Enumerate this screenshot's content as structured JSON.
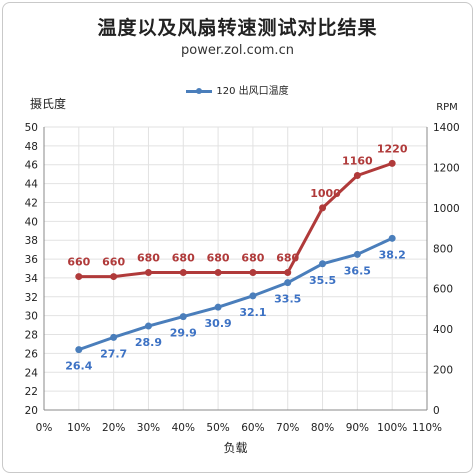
{
  "title": "温度以及风扇转速测试对比结果",
  "subtitle": "power.zol.com.cn",
  "chart_data": {
    "type": "line",
    "x": [
      10,
      20,
      30,
      40,
      50,
      60,
      70,
      80,
      90,
      100
    ],
    "x_tick_labels": [
      "0%",
      "10%",
      "20%",
      "30%",
      "40%",
      "50%",
      "60%",
      "70%",
      "80%",
      "90%",
      "100%",
      "110%"
    ],
    "xlabel": "负载",
    "xlim": [
      0,
      110
    ],
    "y_left": {
      "label": "摄氏度",
      "lim": [
        20,
        50
      ],
      "ticks": [
        20,
        22,
        24,
        26,
        28,
        30,
        32,
        34,
        36,
        38,
        40,
        42,
        44,
        46,
        48,
        50
      ]
    },
    "y_right": {
      "label": "RPM",
      "lim": [
        0,
        1400
      ],
      "ticks": [
        0,
        200,
        400,
        600,
        800,
        1000,
        1200,
        1400
      ]
    },
    "grid": true,
    "legend_position": "top-center",
    "series": [
      {
        "name": "120 出风口温度",
        "axis": "left",
        "color": "#4a7ebb",
        "label_color": "#3d72c4",
        "show_in_legend": true,
        "values": [
          26.4,
          27.7,
          28.9,
          29.9,
          30.9,
          32.1,
          33.5,
          35.5,
          36.5,
          38.2
        ],
        "labels": [
          "26.4",
          "27.7",
          "28.9",
          "29.9",
          "30.9",
          "32.1",
          "33.5",
          "35.5",
          "36.5",
          "38.2"
        ]
      },
      {
        "axis": "right",
        "color": "#b03a3a",
        "label_color": "#b03a3a",
        "show_in_legend": false,
        "values": [
          660,
          660,
          680,
          680,
          680,
          680,
          680,
          1000,
          1160,
          1220
        ],
        "labels": [
          "660",
          "660",
          "680",
          "680",
          "680",
          "680",
          "680",
          "1000",
          "1160",
          "1220"
        ]
      }
    ]
  }
}
